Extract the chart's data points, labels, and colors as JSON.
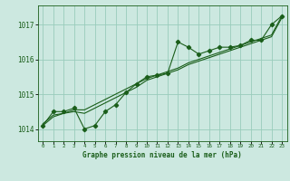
{
  "title": "Graphe pression niveau de la mer (hPa)",
  "background_color": "#cce8e0",
  "plot_bg_color": "#cce8e0",
  "grid_color": "#99ccbb",
  "line_color": "#1a5e1a",
  "marker_color": "#1a5e1a",
  "xlim": [
    -0.5,
    23.5
  ],
  "ylim": [
    1013.65,
    1017.55
  ],
  "yticks": [
    1014,
    1015,
    1016,
    1017
  ],
  "xticks": [
    0,
    1,
    2,
    3,
    4,
    5,
    6,
    7,
    8,
    9,
    10,
    11,
    12,
    13,
    14,
    15,
    16,
    17,
    18,
    19,
    20,
    21,
    22,
    23
  ],
  "hours": [
    0,
    1,
    2,
    3,
    4,
    5,
    6,
    7,
    8,
    9,
    10,
    11,
    12,
    13,
    14,
    15,
    16,
    17,
    18,
    19,
    20,
    21,
    22,
    23
  ],
  "series1": [
    1014.1,
    1014.5,
    1014.5,
    1014.6,
    1014.0,
    1014.1,
    1014.5,
    1014.7,
    1015.05,
    1015.3,
    1015.5,
    1015.55,
    1015.6,
    1016.5,
    1016.35,
    1016.15,
    1016.25,
    1016.35,
    1016.35,
    1016.4,
    1016.55,
    1016.55,
    1017.0,
    1017.25
  ],
  "series2": [
    1014.1,
    1014.35,
    1014.45,
    1014.55,
    1014.55,
    1014.7,
    1014.85,
    1015.0,
    1015.15,
    1015.3,
    1015.45,
    1015.55,
    1015.65,
    1015.75,
    1015.9,
    1016.0,
    1016.1,
    1016.2,
    1016.3,
    1016.4,
    1016.5,
    1016.6,
    1016.7,
    1017.25
  ],
  "series3": [
    1014.15,
    1014.4,
    1014.45,
    1014.5,
    1014.45,
    1014.6,
    1014.75,
    1014.9,
    1015.05,
    1015.2,
    1015.4,
    1015.5,
    1015.6,
    1015.7,
    1015.85,
    1015.95,
    1016.05,
    1016.15,
    1016.25,
    1016.35,
    1016.45,
    1016.55,
    1016.65,
    1017.2
  ],
  "xlabel_fontsize": 5.5,
  "ytick_fontsize": 5.5,
  "xtick_fontsize": 4.2
}
